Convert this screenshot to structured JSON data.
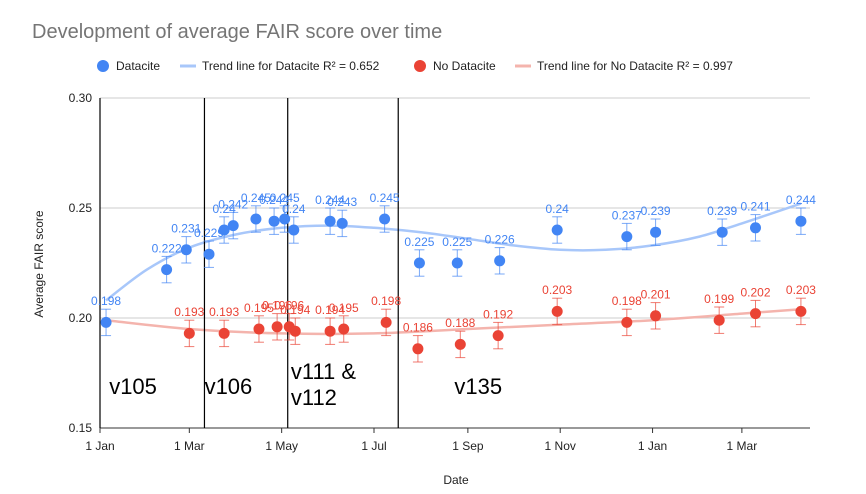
{
  "chart_data": {
    "type": "scatter",
    "title": "Development of average FAIR score over time",
    "xlabel": "Date",
    "ylabel": "Average FAIR score",
    "ylim": [
      0.15,
      0.3
    ],
    "yticks": [
      "0.15",
      "0.20",
      "0.25",
      "0.30"
    ],
    "xlim": [
      "2022-01-01",
      "2023-04-15"
    ],
    "xticks": [
      {
        "date": "2022-01-01",
        "label": "1 Jan"
      },
      {
        "date": "2022-03-01",
        "label": "1 Mar"
      },
      {
        "date": "2022-05-01",
        "label": "1 May"
      },
      {
        "date": "2022-07-01",
        "label": "1 Jul"
      },
      {
        "date": "2022-09-01",
        "label": "1 Sep"
      },
      {
        "date": "2022-11-01",
        "label": "1 Nov"
      },
      {
        "date": "2023-01-01",
        "label": "1 Jan"
      },
      {
        "date": "2023-03-01",
        "label": "1 Mar"
      }
    ],
    "grid": true,
    "legend_position": "top",
    "series": [
      {
        "name": "Datacite",
        "color": "#4285f4",
        "x": [
          "2022-01-05",
          "2022-02-14",
          "2022-02-27",
          "2022-03-14",
          "2022-03-24",
          "2022-03-30",
          "2022-04-14",
          "2022-04-26",
          "2022-05-03",
          "2022-05-09",
          "2022-06-02",
          "2022-06-10",
          "2022-07-08",
          "2022-07-31",
          "2022-08-25",
          "2022-09-22",
          "2022-10-30",
          "2022-12-15",
          "2023-01-03",
          "2023-02-16",
          "2023-03-10",
          "2023-04-09"
        ],
        "y": [
          0.198,
          0.222,
          0.231,
          0.229,
          0.24,
          0.242,
          0.245,
          0.244,
          0.245,
          0.24,
          0.244,
          0.243,
          0.245,
          0.225,
          0.225,
          0.226,
          0.24,
          0.237,
          0.239,
          0.239,
          0.241,
          0.244
        ],
        "labels": [
          "0.198",
          "0.222",
          "0.231",
          "0.229",
          "0.24",
          "0.242",
          "0.245",
          "0.244",
          "0.245",
          "0.24",
          "0.244",
          "0.243",
          "0.245",
          "0.225",
          "0.225",
          "0.226",
          "0.24",
          "0.237",
          "0.239",
          "0.239",
          "0.241",
          "0.244"
        ]
      },
      {
        "name": "No Datacite",
        "color": "#ea4335",
        "x": [
          "2022-03-01",
          "2022-03-24",
          "2022-04-16",
          "2022-04-28",
          "2022-05-06",
          "2022-05-10",
          "2022-06-02",
          "2022-06-11",
          "2022-07-09",
          "2022-07-30",
          "2022-08-27",
          "2022-09-21",
          "2022-10-30",
          "2022-12-15",
          "2023-01-03",
          "2023-02-14",
          "2023-03-10",
          "2023-04-09"
        ],
        "y": [
          0.193,
          0.193,
          0.195,
          0.196,
          0.196,
          0.194,
          0.194,
          0.195,
          0.198,
          0.186,
          0.188,
          0.192,
          0.203,
          0.198,
          0.201,
          0.199,
          0.202,
          0.203
        ],
        "labels": [
          "0.193",
          "0.193",
          "0.195",
          "0.196",
          "0.196",
          "0.194",
          "0.194",
          "0.195",
          "0.198",
          "0.186",
          "0.188",
          "0.192",
          "0.203",
          "0.198",
          "0.201",
          "0.199",
          "0.202",
          "0.203"
        ]
      }
    ],
    "trend_lines": [
      {
        "name": "Trend line for Datacite R² = 0.652",
        "color": "#a8c7fa",
        "x": [
          "2022-01-05",
          "2022-02-01",
          "2022-03-01",
          "2022-04-01",
          "2022-05-01",
          "2022-06-01",
          "2022-07-01",
          "2022-08-01",
          "2022-09-01",
          "2022-10-01",
          "2022-11-01",
          "2022-12-01",
          "2023-01-01",
          "2023-02-01",
          "2023-03-01",
          "2023-04-09"
        ],
        "y": [
          0.208,
          0.222,
          0.232,
          0.238,
          0.241,
          0.242,
          0.241,
          0.239,
          0.236,
          0.233,
          0.231,
          0.231,
          0.233,
          0.237,
          0.243,
          0.252
        ]
      },
      {
        "name": "Trend line for No Datacite R² = 0.997",
        "color": "#f4b4ad",
        "x": [
          "2022-01-05",
          "2022-03-01",
          "2022-05-01",
          "2022-07-01",
          "2022-09-01",
          "2022-11-01",
          "2023-01-01",
          "2023-03-01",
          "2023-04-09"
        ],
        "y": [
          0.199,
          0.195,
          0.193,
          0.193,
          0.195,
          0.197,
          0.199,
          0.202,
          0.204
        ]
      }
    ],
    "error_bar": 0.006,
    "version_lines": [
      "2022-01-01",
      "2022-03-11",
      "2022-05-05",
      "2022-07-17"
    ],
    "version_labels": [
      {
        "lines": [
          "v105"
        ],
        "date": "2022-01-15",
        "y": 0.169
      },
      {
        "lines": [
          "v106"
        ],
        "date": "2022-03-19",
        "y": 0.169
      },
      {
        "lines": [
          "v111 &",
          "v112"
        ],
        "date": "2022-05-15",
        "y": 0.176
      },
      {
        "lines": [
          "v135"
        ],
        "date": "2022-08-31",
        "y": 0.169
      }
    ]
  }
}
